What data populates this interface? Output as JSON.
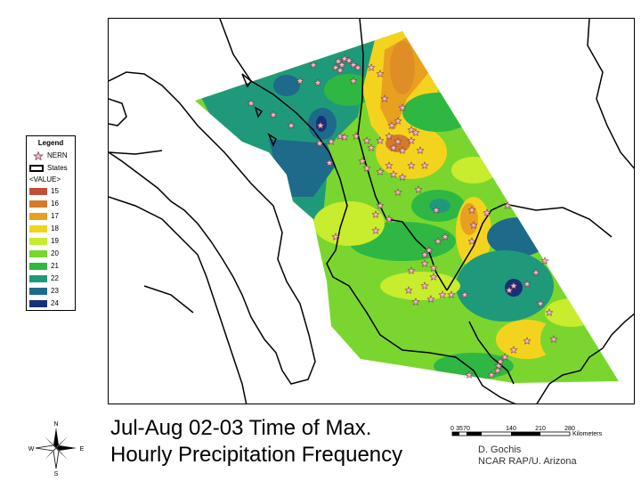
{
  "title": {
    "line1": "Jul-Aug 02-03 Time of Max.",
    "line2": "Hourly Precipitation Frequency"
  },
  "credits": {
    "line1": "D. Gochis",
    "line2": "NCAR RAP/U. Arizona"
  },
  "legend": {
    "title": "Legend",
    "nern_label": "NERN",
    "states_label": "States",
    "value_label": "<VALUE>",
    "classes": [
      {
        "value": "15",
        "color": "#c0503a"
      },
      {
        "value": "16",
        "color": "#d57a2a"
      },
      {
        "value": "17",
        "color": "#e8a020"
      },
      {
        "value": "18",
        "color": "#f4d31e"
      },
      {
        "value": "19",
        "color": "#c8ec2e"
      },
      {
        "value": "20",
        "color": "#7ad62e"
      },
      {
        "value": "21",
        "color": "#2eb843"
      },
      {
        "value": "22",
        "color": "#1e9a7a"
      },
      {
        "value": "23",
        "color": "#1e6a8a"
      },
      {
        "value": "24",
        "color": "#17307a"
      }
    ]
  },
  "scale": {
    "ticks": [
      "0",
      "35",
      "70",
      "140",
      "210",
      "280"
    ],
    "unit": "Kilometers"
  },
  "compass": {
    "n": "N",
    "s": "S",
    "e": "E",
    "w": "W"
  },
  "icons": {
    "station": "star-icon",
    "compass": "compass-rose-icon"
  }
}
